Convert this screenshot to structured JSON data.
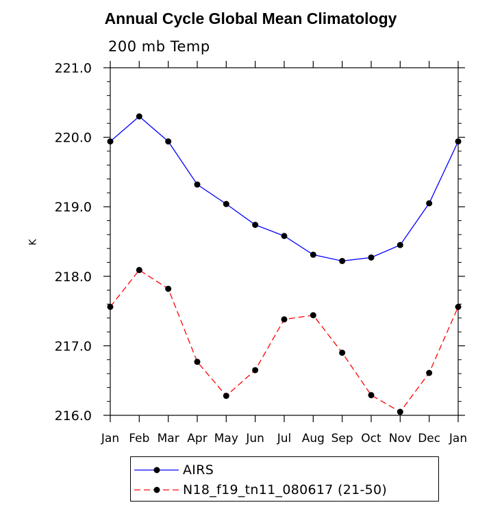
{
  "chart_data": {
    "type": "line",
    "title": "Annual Cycle Global Mean Climatology",
    "subtitle": "200 mb Temp",
    "xlabel": "",
    "ylabel": "K",
    "categories": [
      "Jan",
      "Feb",
      "Mar",
      "Apr",
      "May",
      "Jun",
      "Jul",
      "Aug",
      "Sep",
      "Oct",
      "Nov",
      "Dec",
      "Jan"
    ],
    "ylim": [
      216.0,
      221.0
    ],
    "yticks": [
      "216.0",
      "217.0",
      "218.0",
      "219.0",
      "220.0",
      "221.0"
    ],
    "grid": false,
    "legend_position": "bottom",
    "series": [
      {
        "name": "AIRS",
        "color": "#0000ff",
        "line_style": "solid",
        "values": [
          219.94,
          220.3,
          219.94,
          219.32,
          219.04,
          218.74,
          218.58,
          218.31,
          218.22,
          218.27,
          218.45,
          219.05,
          219.94
        ]
      },
      {
        "name": "N18_f19_tn11_080617 (21-50)",
        "color": "#ff0000",
        "line_style": "dashed",
        "values": [
          217.56,
          218.09,
          217.82,
          216.77,
          216.28,
          216.65,
          217.38,
          217.44,
          216.9,
          216.29,
          216.05,
          216.61,
          217.56
        ]
      }
    ]
  }
}
